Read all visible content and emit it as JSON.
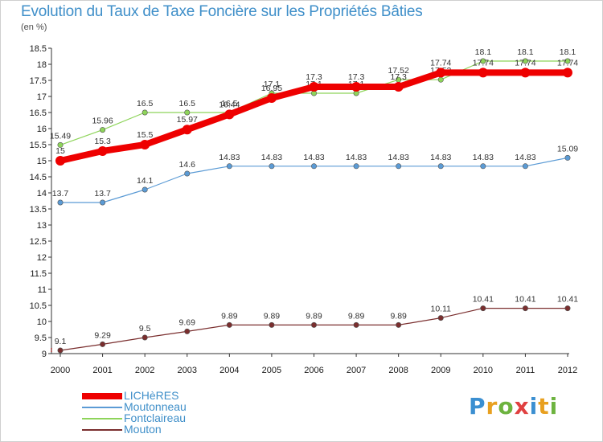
{
  "title": "Evolution du Taux de Taxe Foncière sur les Propriétés Bâties",
  "unit": "(en %)",
  "logo": {
    "letters": [
      "P",
      "r",
      "o",
      "x",
      "i",
      "t",
      "i"
    ],
    "colors": [
      "#3b8fd1",
      "#e8a020",
      "#6db33f",
      "#e04040",
      "#3b8fd1",
      "#e8a020",
      "#6db33f"
    ]
  },
  "chart_data": {
    "type": "line",
    "categories": [
      "2000",
      "2001",
      "2002",
      "2003",
      "2004",
      "2005",
      "2006",
      "2007",
      "2008",
      "2009",
      "2010",
      "2011",
      "2012"
    ],
    "ylim": [
      9,
      18.5
    ],
    "yticks": [
      "9",
      "9.5",
      "10",
      "10.5",
      "11",
      "11.5",
      "12",
      "12.5",
      "13",
      "13.5",
      "14",
      "14.5",
      "15",
      "15.5",
      "16",
      "16.5",
      "17",
      "17.5",
      "18",
      "18.5"
    ],
    "grid": false,
    "legend_position": "bottom-left",
    "series": [
      {
        "name": "LICHèRES",
        "color": "#ee0000",
        "values": [
          15,
          15.3,
          15.5,
          15.97,
          16.44,
          16.95,
          17.3,
          17.3,
          17.3,
          17.74,
          17.74,
          17.74,
          17.74
        ],
        "labels": [
          "15",
          "15.3",
          "15.5",
          "15.97",
          "16.44",
          "16.95",
          "17.3",
          "17.3",
          "17.3",
          "17.74",
          "17.74",
          "17.74",
          "17.74"
        ]
      },
      {
        "name": "Moutonneau",
        "color": "#5b9bd5",
        "values": [
          13.7,
          13.7,
          14.1,
          14.6,
          14.83,
          14.83,
          14.83,
          14.83,
          14.83,
          14.83,
          14.83,
          14.83,
          15.09
        ],
        "labels": [
          "13.7",
          "13.7",
          "14.1",
          "14.6",
          "14.83",
          "14.83",
          "14.83",
          "14.83",
          "14.83",
          "14.83",
          "14.83",
          "14.83",
          "15.09"
        ]
      },
      {
        "name": "Fontclaireau",
        "color": "#8ed45a",
        "values": [
          15.49,
          15.96,
          16.5,
          16.5,
          16.5,
          17.1,
          17.1,
          17.1,
          17.52,
          17.52,
          18.1,
          18.1,
          18.1
        ],
        "labels": [
          "15.49",
          "15.96",
          "16.5",
          "16.5",
          "16.5",
          "17.1",
          "17.1",
          "17.1",
          "17.52",
          "17.52",
          "18.1",
          "18.1",
          "18.1"
        ]
      },
      {
        "name": "Mouton",
        "color": "#7a2e2e",
        "values": [
          9.1,
          9.29,
          9.5,
          9.69,
          9.89,
          9.89,
          9.89,
          9.89,
          9.89,
          10.11,
          10.41,
          10.41,
          10.41
        ],
        "labels": [
          "9.1",
          "9.29",
          "9.5",
          "9.69",
          "9.89",
          "9.89",
          "9.89",
          "9.89",
          "9.89",
          "10.11",
          "10.41",
          "10.41",
          "10.41"
        ]
      }
    ]
  }
}
